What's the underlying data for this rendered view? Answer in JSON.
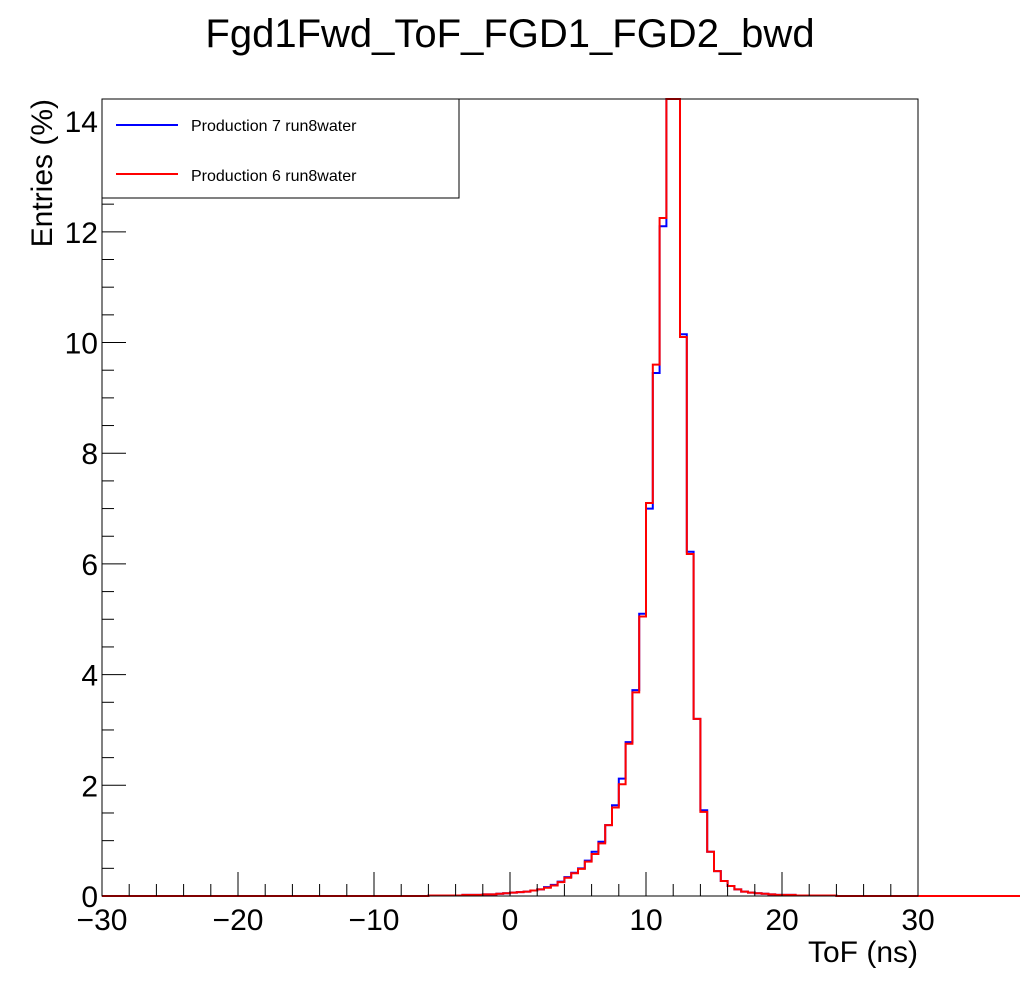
{
  "chart_data": {
    "type": "line",
    "title": "Fgd1Fwd_ToF_FGD1_FGD2_bwd",
    "xlabel": "ToF (ns)",
    "ylabel": "Entries (%)",
    "xlim": [
      -30,
      30
    ],
    "ylim": [
      0,
      14.4
    ],
    "x_ticks": [
      -30,
      -20,
      -10,
      0,
      10,
      20,
      30
    ],
    "x_tick_labels": [
      "−30",
      "−20",
      "−10",
      "0",
      "10",
      "20",
      "30"
    ],
    "y_ticks": [
      0,
      2,
      4,
      6,
      8,
      10,
      12,
      14
    ],
    "y_tick_labels": [
      "0",
      "2",
      "4",
      "6",
      "8",
      "10",
      "12",
      "14"
    ],
    "grid": false,
    "legend_position": "top-left",
    "histogram": true,
    "bin_edges_start": -30,
    "bin_width": 0.5,
    "series": [
      {
        "name": "Production 7 run8water",
        "color": "#0000ff",
        "values": [
          0,
          0,
          0,
          0,
          0,
          0,
          0,
          0,
          0,
          0,
          0,
          0,
          0,
          0,
          0,
          0,
          0,
          0,
          0,
          0,
          0,
          0,
          0,
          0,
          0,
          0,
          0,
          0,
          0,
          0,
          0,
          0,
          0,
          0,
          0,
          0,
          0,
          0,
          0,
          0,
          0,
          0,
          0,
          0,
          0,
          0,
          0,
          0,
          0.01,
          0.01,
          0.01,
          0.01,
          0.01,
          0.02,
          0.02,
          0.02,
          0.03,
          0.03,
          0.04,
          0.05,
          0.06,
          0.07,
          0.08,
          0.1,
          0.12,
          0.16,
          0.2,
          0.26,
          0.34,
          0.42,
          0.5,
          0.64,
          0.8,
          0.98,
          1.28,
          1.64,
          2.12,
          2.78,
          3.72,
          5.1,
          7,
          9.45,
          12.1,
          14.4,
          14.4,
          10.15,
          6.22,
          3.2,
          1.55,
          0.8,
          0.45,
          0.27,
          0.18,
          0.12,
          0.08,
          0.06,
          0.05,
          0.04,
          0.03,
          0.02,
          0.02,
          0.02,
          0.01,
          0.01,
          0.01,
          0.01,
          0.01,
          0.01,
          0,
          0,
          0,
          0,
          0,
          0,
          0,
          0,
          0,
          0,
          0,
          0,
          0,
          0,
          0,
          0,
          0,
          0,
          0,
          0,
          0,
          0,
          0,
          0,
          0,
          0,
          0,
          0,
          0,
          0,
          0,
          0
        ]
      },
      {
        "name": "Production 6 run8water",
        "color": "#ff0000",
        "values": [
          0,
          0,
          0,
          0,
          0,
          0,
          0,
          0,
          0,
          0,
          0,
          0,
          0,
          0,
          0,
          0,
          0,
          0,
          0,
          0,
          0,
          0,
          0,
          0,
          0,
          0,
          0,
          0,
          0,
          0,
          0,
          0,
          0,
          0,
          0,
          0,
          0,
          0,
          0,
          0,
          0,
          0,
          0,
          0,
          0,
          0,
          0,
          0,
          0.01,
          0.01,
          0.01,
          0.01,
          0.01,
          0.02,
          0.02,
          0.02,
          0.03,
          0.03,
          0.04,
          0.05,
          0.06,
          0.07,
          0.08,
          0.1,
          0.12,
          0.15,
          0.19,
          0.25,
          0.33,
          0.41,
          0.49,
          0.62,
          0.76,
          0.95,
          1.28,
          1.6,
          2.02,
          2.75,
          3.68,
          5.05,
          7.1,
          9.6,
          12.25,
          14.4,
          14.4,
          10.1,
          6.18,
          3.2,
          1.52,
          0.8,
          0.45,
          0.27,
          0.18,
          0.12,
          0.08,
          0.06,
          0.05,
          0.04,
          0.03,
          0.02,
          0.02,
          0.02,
          0.01,
          0.01,
          0.01,
          0.01,
          0.01,
          0.01,
          0,
          0,
          0,
          0,
          0,
          0,
          0,
          0,
          0,
          0,
          0,
          0,
          0,
          0,
          0,
          0,
          0,
          0,
          0,
          0,
          0,
          0,
          0,
          0,
          0,
          0,
          0,
          0,
          0,
          0,
          0,
          0
        ]
      }
    ]
  }
}
